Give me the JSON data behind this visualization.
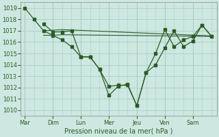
{
  "xlabel": "Pression niveau de la mer( hPa )",
  "bg_color": "#cce8e0",
  "grid_color": "#aacfc8",
  "line_color": "#2d5a27",
  "marker_color": "#2d5a27",
  "ylim": [
    1009.5,
    1019.5
  ],
  "yticks": [
    1010,
    1011,
    1012,
    1013,
    1014,
    1015,
    1016,
    1017,
    1018,
    1019
  ],
  "day_labels": [
    "Mar",
    "Dim",
    "Lun",
    "Mer",
    "Jeu",
    "Ven",
    "Sam"
  ],
  "day_positions": [
    0,
    1,
    2,
    3,
    4,
    5,
    6
  ],
  "xlim": [
    -0.15,
    6.85
  ],
  "line1_x": [
    0.0,
    0.33,
    0.67,
    1.0,
    1.33,
    1.67,
    2.0,
    2.33,
    2.67,
    3.0,
    3.33,
    3.67,
    4.0,
    4.33,
    4.67,
    5.0,
    5.33,
    5.67,
    6.0,
    6.33,
    6.67
  ],
  "line1_y": [
    1019.0,
    1018.0,
    1017.0,
    1016.6,
    1016.2,
    1015.6,
    1014.7,
    1014.7,
    1013.6,
    1012.1,
    1012.2,
    1012.2,
    1010.4,
    1013.3,
    1014.0,
    1015.5,
    1017.0,
    1015.6,
    1016.1,
    1017.5,
    1016.5
  ],
  "line2_x": [
    0.67,
    1.0,
    1.33,
    1.67,
    2.0,
    2.33,
    2.67,
    3.0,
    3.33,
    3.67,
    4.0,
    4.33,
    4.67,
    5.0,
    5.33,
    5.67,
    6.0,
    6.33,
    6.67
  ],
  "line2_y": [
    1017.6,
    1016.9,
    1016.9,
    1017.0,
    1014.7,
    1014.7,
    1013.6,
    1011.3,
    1012.1,
    1012.3,
    1010.4,
    1013.3,
    1015.0,
    1017.1,
    1015.6,
    1016.2,
    1016.5,
    1017.5,
    1016.5
  ],
  "line3_x": [
    0.67,
    1.0,
    1.33,
    6.67
  ],
  "line3_y": [
    1016.6,
    1016.6,
    1016.65,
    1016.5
  ],
  "line4_x": [
    0.67,
    1.0,
    1.33,
    6.67
  ],
  "line4_y": [
    1017.0,
    1017.05,
    1017.1,
    1016.55
  ]
}
